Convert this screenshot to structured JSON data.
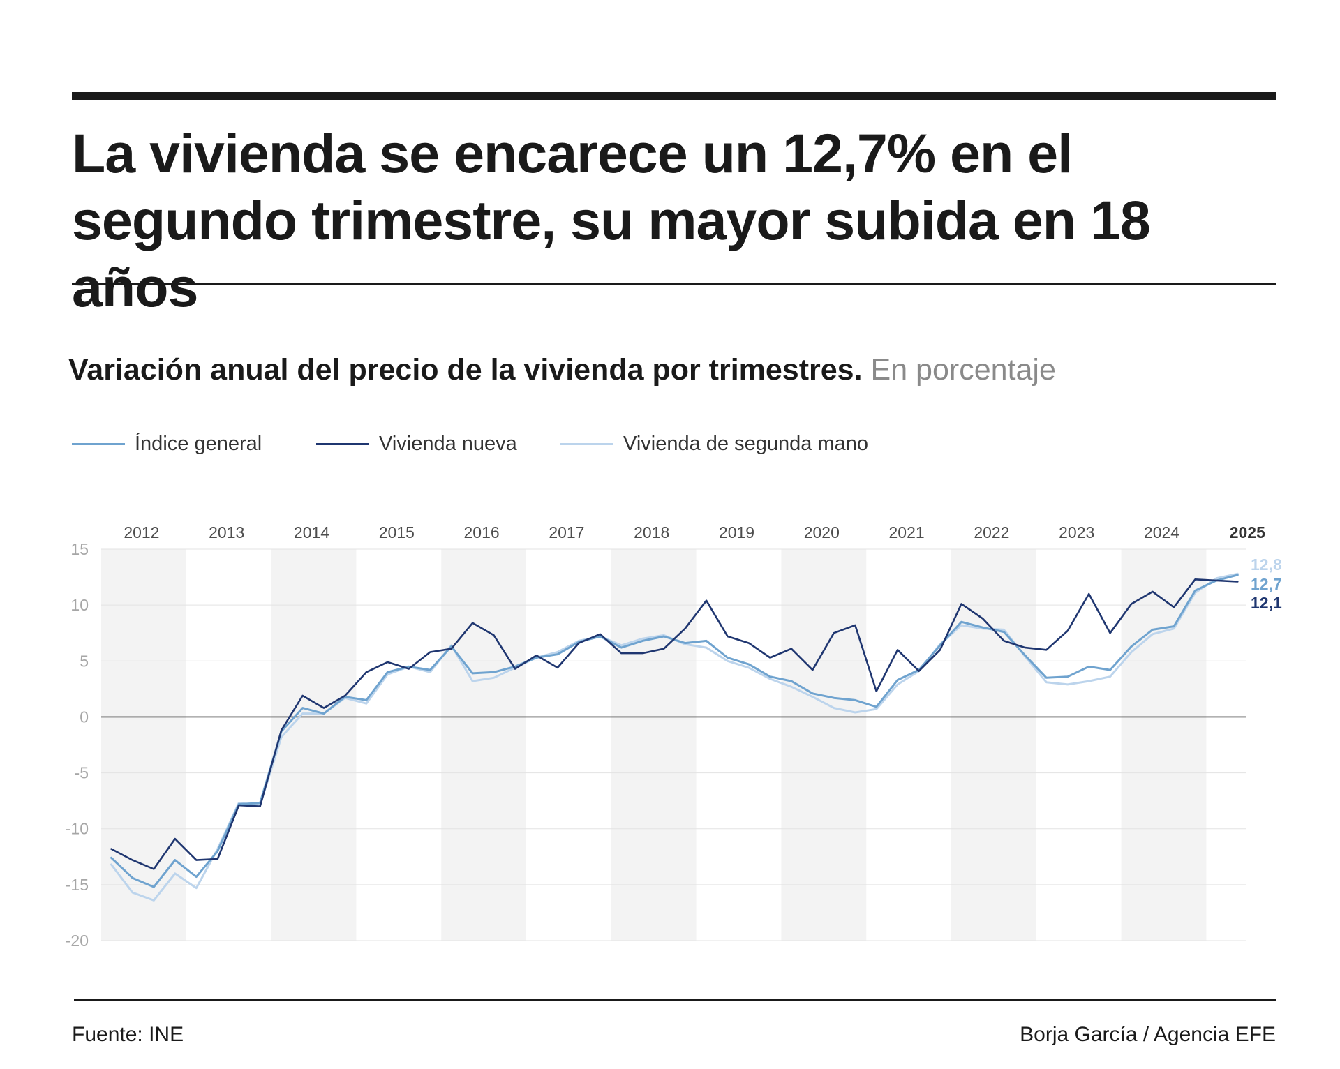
{
  "header": {
    "headline": "La vivienda se encarece un 12,7% en el segundo trimestre, su mayor subida en 18 años"
  },
  "subtitle": {
    "main": "Variación anual del precio de la vivienda por trimestres.",
    "unit": "En porcentaje"
  },
  "footer": {
    "source": "Fuente: INE",
    "credit": "Borja García / Agencia EFE"
  },
  "colors": {
    "general": "#6fa3cf",
    "nueva": "#1f3670",
    "segunda": "#bcd4ec",
    "band": "#f3f3f3",
    "grid": "#e3e3e3",
    "zero": "#333333"
  },
  "chart_data": {
    "type": "line",
    "title": "Variación anual del precio de la vivienda por trimestres",
    "ylabel": "En porcentaje",
    "ylim": [
      -20,
      15
    ],
    "yticks": [
      15,
      10,
      5,
      0,
      -5,
      -10,
      -15,
      -20
    ],
    "years": [
      "2012",
      "2013",
      "2014",
      "2015",
      "2016",
      "2017",
      "2018",
      "2019",
      "2020",
      "2021",
      "2022",
      "2023",
      "2024",
      "2025"
    ],
    "highlight_year": "2025",
    "x_start": "2012 T1",
    "series": [
      {
        "name": "Índice general",
        "key": "general",
        "end_label": "12,7",
        "values": [
          -12.6,
          -14.4,
          -15.2,
          -12.8,
          -14.3,
          -12.0,
          -7.8,
          -7.7,
          -1.3,
          0.8,
          0.3,
          1.8,
          1.5,
          4.0,
          4.5,
          4.2,
          6.3,
          3.9,
          4.0,
          4.5,
          5.3,
          5.6,
          6.7,
          7.2,
          6.2,
          6.8,
          7.2,
          6.6,
          6.8,
          5.3,
          4.7,
          3.6,
          3.2,
          2.1,
          1.7,
          1.5,
          0.9,
          3.3,
          4.2,
          6.4,
          8.5,
          8.0,
          7.6,
          5.5,
          3.5,
          3.6,
          4.5,
          4.2,
          6.3,
          7.8,
          8.1,
          11.3,
          12.2,
          12.7
        ]
      },
      {
        "name": "Vivienda nueva",
        "key": "nueva",
        "end_label": "12,1",
        "values": [
          -11.8,
          -12.8,
          -13.6,
          -10.9,
          -12.8,
          -12.7,
          -7.9,
          -8.0,
          -1.2,
          1.9,
          0.8,
          1.9,
          4.0,
          4.9,
          4.3,
          5.8,
          6.1,
          8.4,
          7.3,
          4.3,
          5.5,
          4.4,
          6.6,
          7.4,
          5.7,
          5.7,
          6.1,
          7.9,
          10.4,
          7.2,
          6.6,
          5.3,
          6.1,
          4.2,
          7.5,
          8.2,
          2.3,
          6.0,
          4.1,
          6.0,
          10.1,
          8.8,
          6.8,
          6.2,
          6.0,
          7.7,
          11.0,
          7.5,
          10.1,
          11.2,
          9.8,
          12.3,
          12.2,
          12.1
        ]
      },
      {
        "name": "Vivienda de segunda mano",
        "key": "segunda",
        "end_label": "12,8",
        "values": [
          -13.2,
          -15.7,
          -16.4,
          -14.0,
          -15.3,
          -11.8,
          -7.7,
          -7.9,
          -1.8,
          0.3,
          0.3,
          1.7,
          1.2,
          3.8,
          4.5,
          4.0,
          6.4,
          3.2,
          3.5,
          4.4,
          5.3,
          5.8,
          6.8,
          7.2,
          6.4,
          7.0,
          7.3,
          6.5,
          6.2,
          5.0,
          4.4,
          3.4,
          2.7,
          1.8,
          0.8,
          0.4,
          0.7,
          2.9,
          4.1,
          6.5,
          8.2,
          7.9,
          7.8,
          5.4,
          3.1,
          2.9,
          3.2,
          3.6,
          5.8,
          7.4,
          7.9,
          11.1,
          12.4,
          12.8
        ]
      }
    ]
  }
}
